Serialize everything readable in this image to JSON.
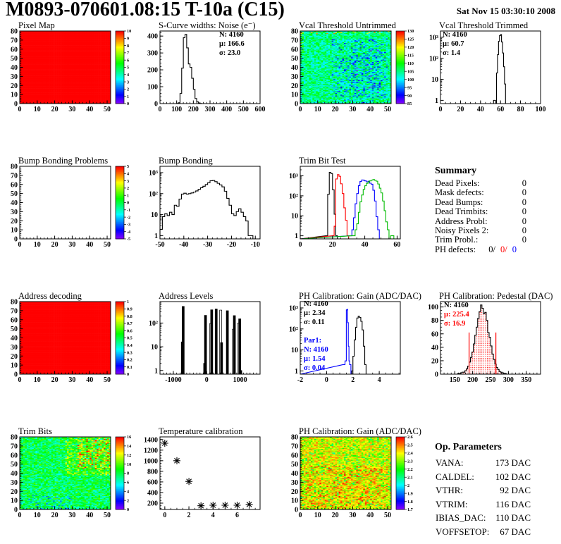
{
  "header": {
    "title": "M0893-070601.08:15 T-10a (C15)",
    "timestamp": "Sat Nov 15 03:30:10 2008"
  },
  "summary": {
    "title": "Summary",
    "rows": [
      {
        "label": "Dead Pixels:",
        "value": "0"
      },
      {
        "label": "Mask defects:",
        "value": "0"
      },
      {
        "label": "Dead Bumps:",
        "value": "0"
      },
      {
        "label": "Dead Trimbits:",
        "value": "0"
      },
      {
        "label": "Address Probl:",
        "value": "0"
      },
      {
        "label": "Noisy Pixels 2:",
        "value": "0"
      },
      {
        "label": "Trim Probl.:",
        "value": "0"
      },
      {
        "label": "PH defects:",
        "values": [
          {
            "t": "0/",
            "c": "#000000"
          },
          {
            "t": "0/",
            "c": "#ff0000"
          },
          {
            "t": "0",
            "c": "#0000ff"
          }
        ]
      }
    ]
  },
  "op_parameters": {
    "title": "Op. Parameters",
    "rows": [
      {
        "label": "VANA:",
        "value": "173 DAC"
      },
      {
        "label": "CALDEL:",
        "value": "102 DAC"
      },
      {
        "label": "VTHR:",
        "value": "92 DAC"
      },
      {
        "label": "VTRIM:",
        "value": "116 DAC"
      },
      {
        "label": "IBIAS_DAC:",
        "value": "110 DAC"
      },
      {
        "label": "VOFFSETOP:",
        "value": "67 DAC"
      }
    ]
  },
  "chart_data": [
    {
      "title": "Pixel Map",
      "type": "heatmap",
      "x": {
        "min": 0,
        "max": 52,
        "ticks": [
          0,
          10,
          20,
          30,
          40,
          50
        ],
        "minor": 2
      },
      "y": {
        "min": 0,
        "max": 80,
        "ticks": [
          0,
          10,
          20,
          30,
          40,
          50,
          60,
          70,
          80
        ],
        "minor": 2
      },
      "z": {
        "min": 0,
        "max": 10,
        "ticks": [
          0,
          1,
          2,
          3,
          4,
          5,
          6,
          7,
          8,
          9,
          10
        ]
      },
      "fill": {
        "base": 10,
        "noise": 0,
        "seed": 1,
        "patches": []
      }
    },
    {
      "title": "S-Curve widths: Noise (e⁻)",
      "type": "hist",
      "ylog": false,
      "x": {
        "min": 0,
        "max": 600,
        "ticks": [
          0,
          100,
          200,
          300,
          400,
          500,
          600
        ],
        "minor": 20
      },
      "y": {
        "min": 0,
        "max": 430,
        "ticks": [
          0,
          100,
          200,
          300,
          400
        ],
        "minor": 20
      },
      "series": [
        {
          "color": "#000000",
          "x0": 100,
          "bw": 10,
          "counts": [
            1,
            5,
            60,
            210,
            390,
            410,
            330,
            235,
            215,
            150,
            85,
            30,
            10,
            3,
            1
          ]
        }
      ],
      "stats": {
        "x": 112,
        "y": 22,
        "lines": [
          {
            "t": "N: 4160",
            "c": "#000000"
          },
          {
            "t": "μ: 166.6",
            "c": "#000000"
          },
          {
            "t": "σ: 23.0",
            "c": "#000000"
          }
        ]
      }
    },
    {
      "title": "Vcal Threshold Untrimmed",
      "type": "heatmap",
      "x": {
        "min": 0,
        "max": 52,
        "ticks": [
          0,
          10,
          20,
          30,
          40,
          50
        ],
        "minor": 2
      },
      "y": {
        "min": 0,
        "max": 80,
        "ticks": [
          0,
          10,
          20,
          30,
          40,
          50,
          60,
          70,
          80
        ],
        "minor": 2
      },
      "z": {
        "min": 85,
        "max": 130,
        "ticks": [
          85,
          90,
          95,
          100,
          105,
          110,
          115,
          120,
          125,
          130
        ]
      },
      "fill": {
        "base": 104.5,
        "noise": 6,
        "seed": 7,
        "patches": [
          {
            "x0": 18,
            "x1": 50,
            "y0": 0,
            "y1": 72,
            "p": 0.2,
            "d": -9
          },
          {
            "x0": 30,
            "x1": 46,
            "y0": 10,
            "y1": 60,
            "p": 0.18,
            "d": -7
          },
          {
            "x0": 0,
            "x1": 52,
            "y0": 77,
            "y1": 80,
            "p": 0.12,
            "d": 16
          },
          {
            "x0": 0,
            "x1": 2,
            "y0": 55,
            "y1": 80,
            "p": 0.25,
            "d": 9
          }
        ]
      }
    },
    {
      "title": "Vcal Threshold Trimmed",
      "type": "hist",
      "ylog": true,
      "x": {
        "min": 0,
        "max": 100,
        "ticks": [
          0,
          20,
          40,
          60,
          80,
          100
        ],
        "minor": 5
      },
      "y": {
        "max": 2000
      },
      "series": [
        {
          "color": "#000000",
          "x0": 53,
          "bw": 1,
          "counts": [
            1,
            1,
            0,
            20,
            150,
            650,
            1200,
            1350,
            600,
            180,
            40,
            6
          ]
        }
      ],
      "stats": {
        "x": 31,
        "y": 22,
        "lines": [
          {
            "t": "N: 4160",
            "c": "#000000"
          },
          {
            "t": "μ: 60.7",
            "c": "#000000"
          },
          {
            "t": "σ:  1.4",
            "c": "#000000"
          }
        ]
      }
    },
    {
      "title": "Bump Bonding Problems",
      "type": "heatmap",
      "x": {
        "min": 0,
        "max": 52,
        "ticks": [
          0,
          10,
          20,
          30,
          40,
          50
        ],
        "minor": 2
      },
      "y": {
        "min": 0,
        "max": 80,
        "ticks": [
          0,
          10,
          20,
          30,
          40,
          50,
          60,
          70,
          80
        ],
        "minor": 2
      },
      "z": {
        "min": -5,
        "max": 5,
        "ticks": [
          -5,
          -4,
          -3,
          -2,
          -1,
          0,
          1,
          2,
          3,
          4,
          5
        ]
      },
      "fill": null
    },
    {
      "title": "Bump Bonding",
      "type": "hist",
      "ylog": true,
      "x": {
        "min": -50,
        "max": -8,
        "ticks": [
          -50,
          -40,
          -30,
          -20,
          -10
        ],
        "minor": 2
      },
      "y": {
        "max": 2000
      },
      "series": [
        {
          "color": "#000000",
          "x0": -50,
          "bw": 1,
          "counts": [
            2,
            8,
            11,
            9,
            13,
            10,
            28,
            25,
            55,
            95,
            105,
            95,
            100,
            108,
            118,
            135,
            160,
            190,
            225,
            270,
            330,
            410,
            420,
            370,
            310,
            260,
            210,
            130,
            60,
            28,
            11,
            9,
            14,
            19,
            13,
            8,
            5,
            1,
            1
          ]
        }
      ]
    },
    {
      "title": "Trim Bit Test",
      "type": "hist",
      "ylog": true,
      "x": {
        "min": 0,
        "max": 62,
        "ticks": [
          0,
          20,
          40,
          60
        ],
        "minor": 5
      },
      "y": {
        "max": 3000
      },
      "series": [
        {
          "color": "#000000",
          "x0": 16,
          "bw": 1,
          "fullLeft": true,
          "fullRight": true,
          "counts": [
            1,
            120,
            1500,
            1300,
            200,
            12,
            1
          ]
        },
        {
          "color": "#ff0000",
          "x0": 20,
          "bw": 1,
          "fullLeft": true,
          "fullRight": true,
          "counts": [
            1,
            3,
            700,
            1150,
            950,
            400,
            130,
            25,
            6,
            1
          ]
        },
        {
          "color": "#0000ff",
          "x0": 31,
          "bw": 1,
          "fullLeft": true,
          "fullRight": true,
          "counts": [
            1,
            2,
            8,
            40,
            130,
            320,
            520,
            620,
            600,
            560,
            500,
            540,
            430,
            380,
            190,
            55,
            9,
            2
          ]
        },
        {
          "color": "#00bb00",
          "x0": 32,
          "bw": 1,
          "fullLeft": true,
          "fullRight": true,
          "counts": [
            1,
            1,
            2,
            4,
            15,
            50,
            110,
            210,
            320,
            420,
            500,
            560,
            610,
            650,
            600,
            540,
            390,
            240,
            140,
            55,
            18,
            5,
            2,
            0,
            1,
            1
          ]
        }
      ]
    },
    {
      "title": "Address decoding",
      "type": "heatmap",
      "x": {
        "min": 0,
        "max": 52,
        "ticks": [
          0,
          10,
          20,
          30,
          40,
          50
        ],
        "minor": 2
      },
      "y": {
        "min": 0,
        "max": 80,
        "ticks": [
          0,
          10,
          20,
          30,
          40,
          50,
          60,
          70,
          80
        ],
        "minor": 2
      },
      "z": {
        "min": 0,
        "max": 1,
        "ticks": [
          0,
          0.1,
          0.2,
          0.3,
          0.4,
          0.5,
          0.6,
          0.7,
          0.8,
          0.9,
          1
        ]
      },
      "fill": {
        "base": 1,
        "noise": 0,
        "seed": 2,
        "patches": []
      }
    },
    {
      "title": "Address Levels",
      "type": "spikes",
      "ylog": true,
      "x": {
        "min": -1400,
        "max": 1600,
        "ticks": [
          -1000,
          0,
          1000
        ],
        "minor": 100
      },
      "y": {
        "max": 800
      },
      "spikes": [
        [
          -730,
          16,
          1
        ],
        [
          -705,
          500,
          1
        ],
        [
          -60,
          2,
          1
        ],
        [
          -35,
          210,
          1
        ],
        [
          120,
          95,
          0
        ],
        [
          150,
          360,
          1
        ],
        [
          285,
          390,
          1
        ],
        [
          420,
          350,
          0
        ],
        [
          445,
          15,
          1
        ],
        [
          620,
          330,
          1
        ],
        [
          800,
          55,
          0
        ],
        [
          830,
          205,
          1
        ],
        [
          955,
          100,
          0
        ],
        [
          990,
          150,
          1
        ],
        [
          1020,
          1,
          1
        ]
      ]
    },
    {
      "title": "PH Calibration: Gain (ADC/DAC)",
      "type": "hist",
      "ylog": true,
      "x": {
        "min": -2,
        "max": 5.6,
        "ticks": [
          -2,
          0,
          2,
          4
        ],
        "minor": 0.5
      },
      "y": {
        "max": 2000
      },
      "series": [
        {
          "color": "#000000",
          "x0": 1.9,
          "bw": 0.1,
          "fullRight": true,
          "counts": [
            1,
            5,
            30,
            120,
            330,
            400,
            350,
            230,
            90,
            15,
            2
          ]
        },
        {
          "color": "#0000ff",
          "x0": 1.25,
          "bw": 0.05,
          "fullLeft": true,
          "fullRight": true,
          "counts": [
            2,
            2,
            2,
            3,
            3,
            800,
            850,
            200,
            15,
            3,
            2,
            2
          ]
        }
      ],
      "stats": {
        "x": 33,
        "y": 20,
        "lines": [
          {
            "t": "N: 4160",
            "c": "#000000"
          },
          {
            "t": "μ: 2.34",
            "c": "#000000"
          },
          {
            "t": "σ: 0.11",
            "c": "#000000"
          }
        ]
      },
      "stats2": {
        "x": 33,
        "y": 72,
        "lines": [
          {
            "t": "Par1:",
            "c": "#0000ff"
          },
          {
            "t": "N: 4160",
            "c": "#0000ff"
          },
          {
            "t": "μ: 1.54",
            "c": "#0000ff"
          },
          {
            "t": "σ: 0.04",
            "c": "#0000ff"
          }
        ]
      }
    },
    {
      "title": "PH Calibration: Pedestal (DAC)",
      "type": "hist",
      "ylog": false,
      "x": {
        "min": 110,
        "max": 390,
        "ticks": [
          150,
          200,
          250,
          300,
          350
        ],
        "minor": 10
      },
      "y": {
        "min": 0,
        "max": 108,
        "ticks": [
          0,
          20,
          40,
          60,
          80,
          100
        ],
        "minor": 5
      },
      "series": [
        {
          "color": "#000000",
          "x0": 158,
          "bw": 4,
          "dotfill": true,
          "counts": [
            1,
            1,
            2,
            3,
            3,
            5,
            8,
            12,
            18,
            25,
            33,
            45,
            58,
            70,
            83,
            93,
            103,
            98,
            90,
            92,
            80,
            62,
            55,
            42,
            30,
            22,
            15,
            10,
            7,
            4,
            3,
            2,
            1,
            1
          ]
        }
      ],
      "vlines": [
        {
          "x": 190,
          "h": 62,
          "c": "#ff0000"
        },
        {
          "x": 265,
          "h": 62,
          "c": "#ff0000"
        }
      ],
      "stats": {
        "x": 33,
        "y": 22,
        "lines": [
          {
            "t": "N: 4160",
            "c": "#000000"
          },
          {
            "t": "μ: 225.4",
            "c": "#ff0000"
          },
          {
            "t": "σ: 16.9",
            "c": "#ff0000"
          }
        ]
      }
    },
    {
      "title": "Trim Bits",
      "type": "heatmap",
      "x": {
        "min": 0,
        "max": 52,
        "ticks": [
          0,
          10,
          20,
          30,
          40,
          50
        ],
        "minor": 2
      },
      "y": {
        "min": 0,
        "max": 80,
        "ticks": [
          0,
          10,
          20,
          30,
          40,
          50,
          60,
          70,
          80
        ],
        "minor": 2
      },
      "z": {
        "min": 0,
        "max": 16,
        "ticks": [
          0,
          2,
          4,
          6,
          8,
          10,
          12,
          14,
          16
        ]
      },
      "fill": {
        "base": 7.8,
        "noise": 2.3,
        "seed": 12,
        "patches": [
          {
            "x0": 26,
            "x1": 52,
            "y0": 38,
            "y1": 80,
            "p": 0.5,
            "d": 2.6
          },
          {
            "x0": 33,
            "x1": 52,
            "y0": 45,
            "y1": 78,
            "p": 0.3,
            "d": 4.2
          },
          {
            "x0": 0,
            "x1": 30,
            "y0": 0,
            "y1": 16,
            "p": 0.22,
            "d": -2.6
          }
        ]
      }
    },
    {
      "title": "Temperature calibration",
      "type": "scatter",
      "x": {
        "min": -0.4,
        "max": 7.9,
        "ticks": [
          0,
          2,
          4,
          6
        ],
        "minor": 0.5
      },
      "y": {
        "min": 80,
        "max": 1450,
        "ticks": [
          200,
          400,
          600,
          800,
          1000,
          1200,
          1400
        ],
        "minor": 50
      },
      "points": [
        [
          0,
          1330
        ],
        [
          1,
          1000
        ],
        [
          2,
          610
        ],
        [
          3,
          150
        ],
        [
          4,
          160
        ],
        [
          5,
          160
        ],
        [
          6,
          160
        ],
        [
          7,
          175
        ]
      ]
    },
    {
      "title": "PH Calibration: Gain (ADC/DAC)",
      "type": "heatmap",
      "x": {
        "min": 0,
        "max": 52,
        "ticks": [
          0,
          10,
          20,
          30,
          40,
          50
        ],
        "minor": 2
      },
      "y": {
        "min": 0,
        "max": 80,
        "ticks": [
          0,
          10,
          20,
          30,
          40,
          50,
          60,
          70,
          80
        ],
        "minor": 2
      },
      "z": {
        "min": 1.7,
        "max": 2.6,
        "ticks": [
          1.7,
          1.8,
          1.9,
          2,
          2.1,
          2.2,
          2.3,
          2.4,
          2.5,
          2.6
        ]
      },
      "fill": {
        "base": 2.38,
        "noise": 0.12,
        "seed": 5,
        "patches": [
          {
            "x0": 3,
            "x1": 50,
            "y0": 2,
            "y1": 48,
            "p": 0.4,
            "d": 0.09
          },
          {
            "x0": 0,
            "x1": 52,
            "y0": 0,
            "y1": 80,
            "p": 0.12,
            "d": -0.2
          }
        ]
      }
    }
  ]
}
